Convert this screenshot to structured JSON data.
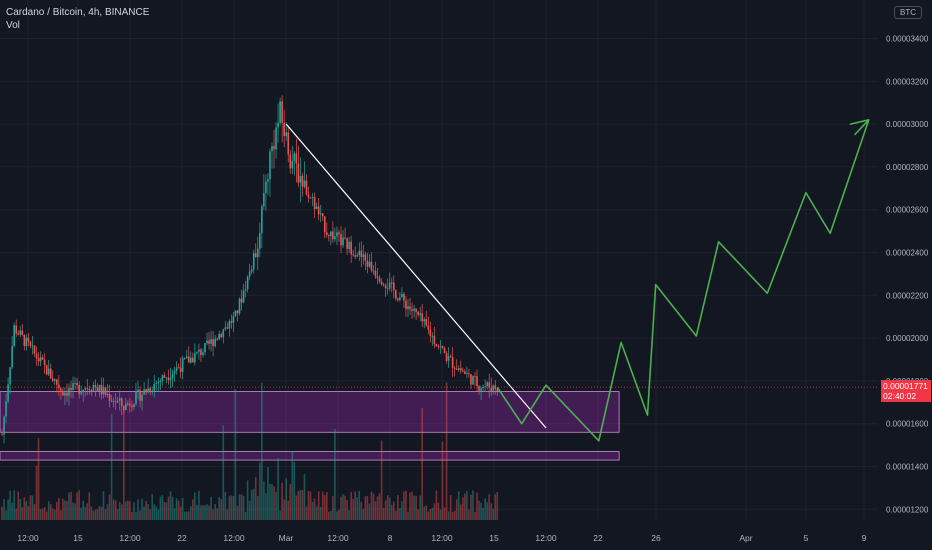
{
  "legend": {
    "symbol": "Cardano / Bitcoin, 4h, BINANCE",
    "volume_label": "Vol"
  },
  "currency_badge": "BTC",
  "colors": {
    "background": "#131722",
    "grid": "#1e222d",
    "up": "#26a69a",
    "down": "#ef5350",
    "trendline": "#ffffff",
    "forecast": "#4caf50",
    "zone_fill": "#9c27b0",
    "zone_border": "#ce93d8",
    "price_tag": "#f23645"
  },
  "current_price": {
    "value": "0.00001771",
    "countdown": "02:40:02"
  },
  "chart_data": {
    "type": "candlestick",
    "ylim": [
      1.15e-05,
      3.58e-05
    ],
    "y_ticks": [
      "0.00003400",
      "0.00003200",
      "0.00003000",
      "0.00002800",
      "0.00002600",
      "0.00002400",
      "0.00002200",
      "0.00002000",
      "0.00001800",
      "0.00001600",
      "0.00001400",
      "0.00001200"
    ],
    "y_tick_values": [
      3.4e-05,
      3.2e-05,
      3e-05,
      2.8e-05,
      2.6e-05,
      2.4e-05,
      2.2e-05,
      2e-05,
      1.8e-05,
      1.6e-05,
      1.4e-05,
      1.2e-05
    ],
    "x_labels": [
      "12:00",
      "15",
      "12:00",
      "22",
      "12:00",
      "Mar",
      "12:00",
      "8",
      "12:00",
      "15",
      "12:00",
      "22",
      "26",
      "Apr",
      "5",
      "9"
    ],
    "price_key_points": [
      {
        "i": 0,
        "v": 1.55e-05
      },
      {
        "i": 6,
        "v": 2.05e-05
      },
      {
        "i": 18,
        "v": 1.9e-05
      },
      {
        "i": 30,
        "v": 1.75e-05
      },
      {
        "i": 45,
        "v": 1.78e-05
      },
      {
        "i": 60,
        "v": 1.68e-05
      },
      {
        "i": 80,
        "v": 1.82e-05
      },
      {
        "i": 100,
        "v": 1.95e-05
      },
      {
        "i": 115,
        "v": 2.1e-05
      },
      {
        "i": 125,
        "v": 2.4e-05
      },
      {
        "i": 132,
        "v": 2.85e-05
      },
      {
        "i": 137,
        "v": 3.05e-05
      },
      {
        "i": 142,
        "v": 2.85e-05
      },
      {
        "i": 150,
        "v": 2.7e-05
      },
      {
        "i": 160,
        "v": 2.5e-05
      },
      {
        "i": 175,
        "v": 2.4e-05
      },
      {
        "i": 190,
        "v": 2.25e-05
      },
      {
        "i": 205,
        "v": 2.1e-05
      },
      {
        "i": 220,
        "v": 1.9e-05
      },
      {
        "i": 235,
        "v": 1.78e-05
      },
      {
        "i": 244,
        "v": 1.77e-05
      }
    ],
    "candle_count": 245,
    "trendline": [
      {
        "i": 140,
        "v": 3e-05
      },
      {
        "i": 268,
        "v": 1.58e-05
      }
    ],
    "forecast_path": [
      {
        "i": 244,
        "v": 1.77e-05
      },
      {
        "i": 256,
        "v": 1.6e-05
      },
      {
        "i": 268,
        "v": 1.78e-05
      },
      {
        "i": 294,
        "v": 1.52e-05
      },
      {
        "i": 305,
        "v": 1.98e-05
      },
      {
        "i": 318,
        "v": 1.64e-05
      },
      {
        "i": 322,
        "v": 2.25e-05
      },
      {
        "i": 342,
        "v": 2.01e-05
      },
      {
        "i": 353,
        "v": 2.45e-05
      },
      {
        "i": 377,
        "v": 2.21e-05
      },
      {
        "i": 396,
        "v": 2.68e-05
      },
      {
        "i": 408,
        "v": 2.49e-05
      },
      {
        "i": 427,
        "v": 3.02e-05
      },
      {
        "i": 418,
        "v": 3e-05
      },
      {
        "i": 427,
        "v": 3.02e-05
      },
      {
        "i": 420,
        "v": 2.95e-05
      }
    ],
    "zones": [
      {
        "top": 1.75e-05,
        "bottom": 1.56e-05,
        "i_end": 304
      },
      {
        "top": 1.47e-05,
        "bottom": 1.43e-05,
        "i_end": 304
      }
    ]
  }
}
